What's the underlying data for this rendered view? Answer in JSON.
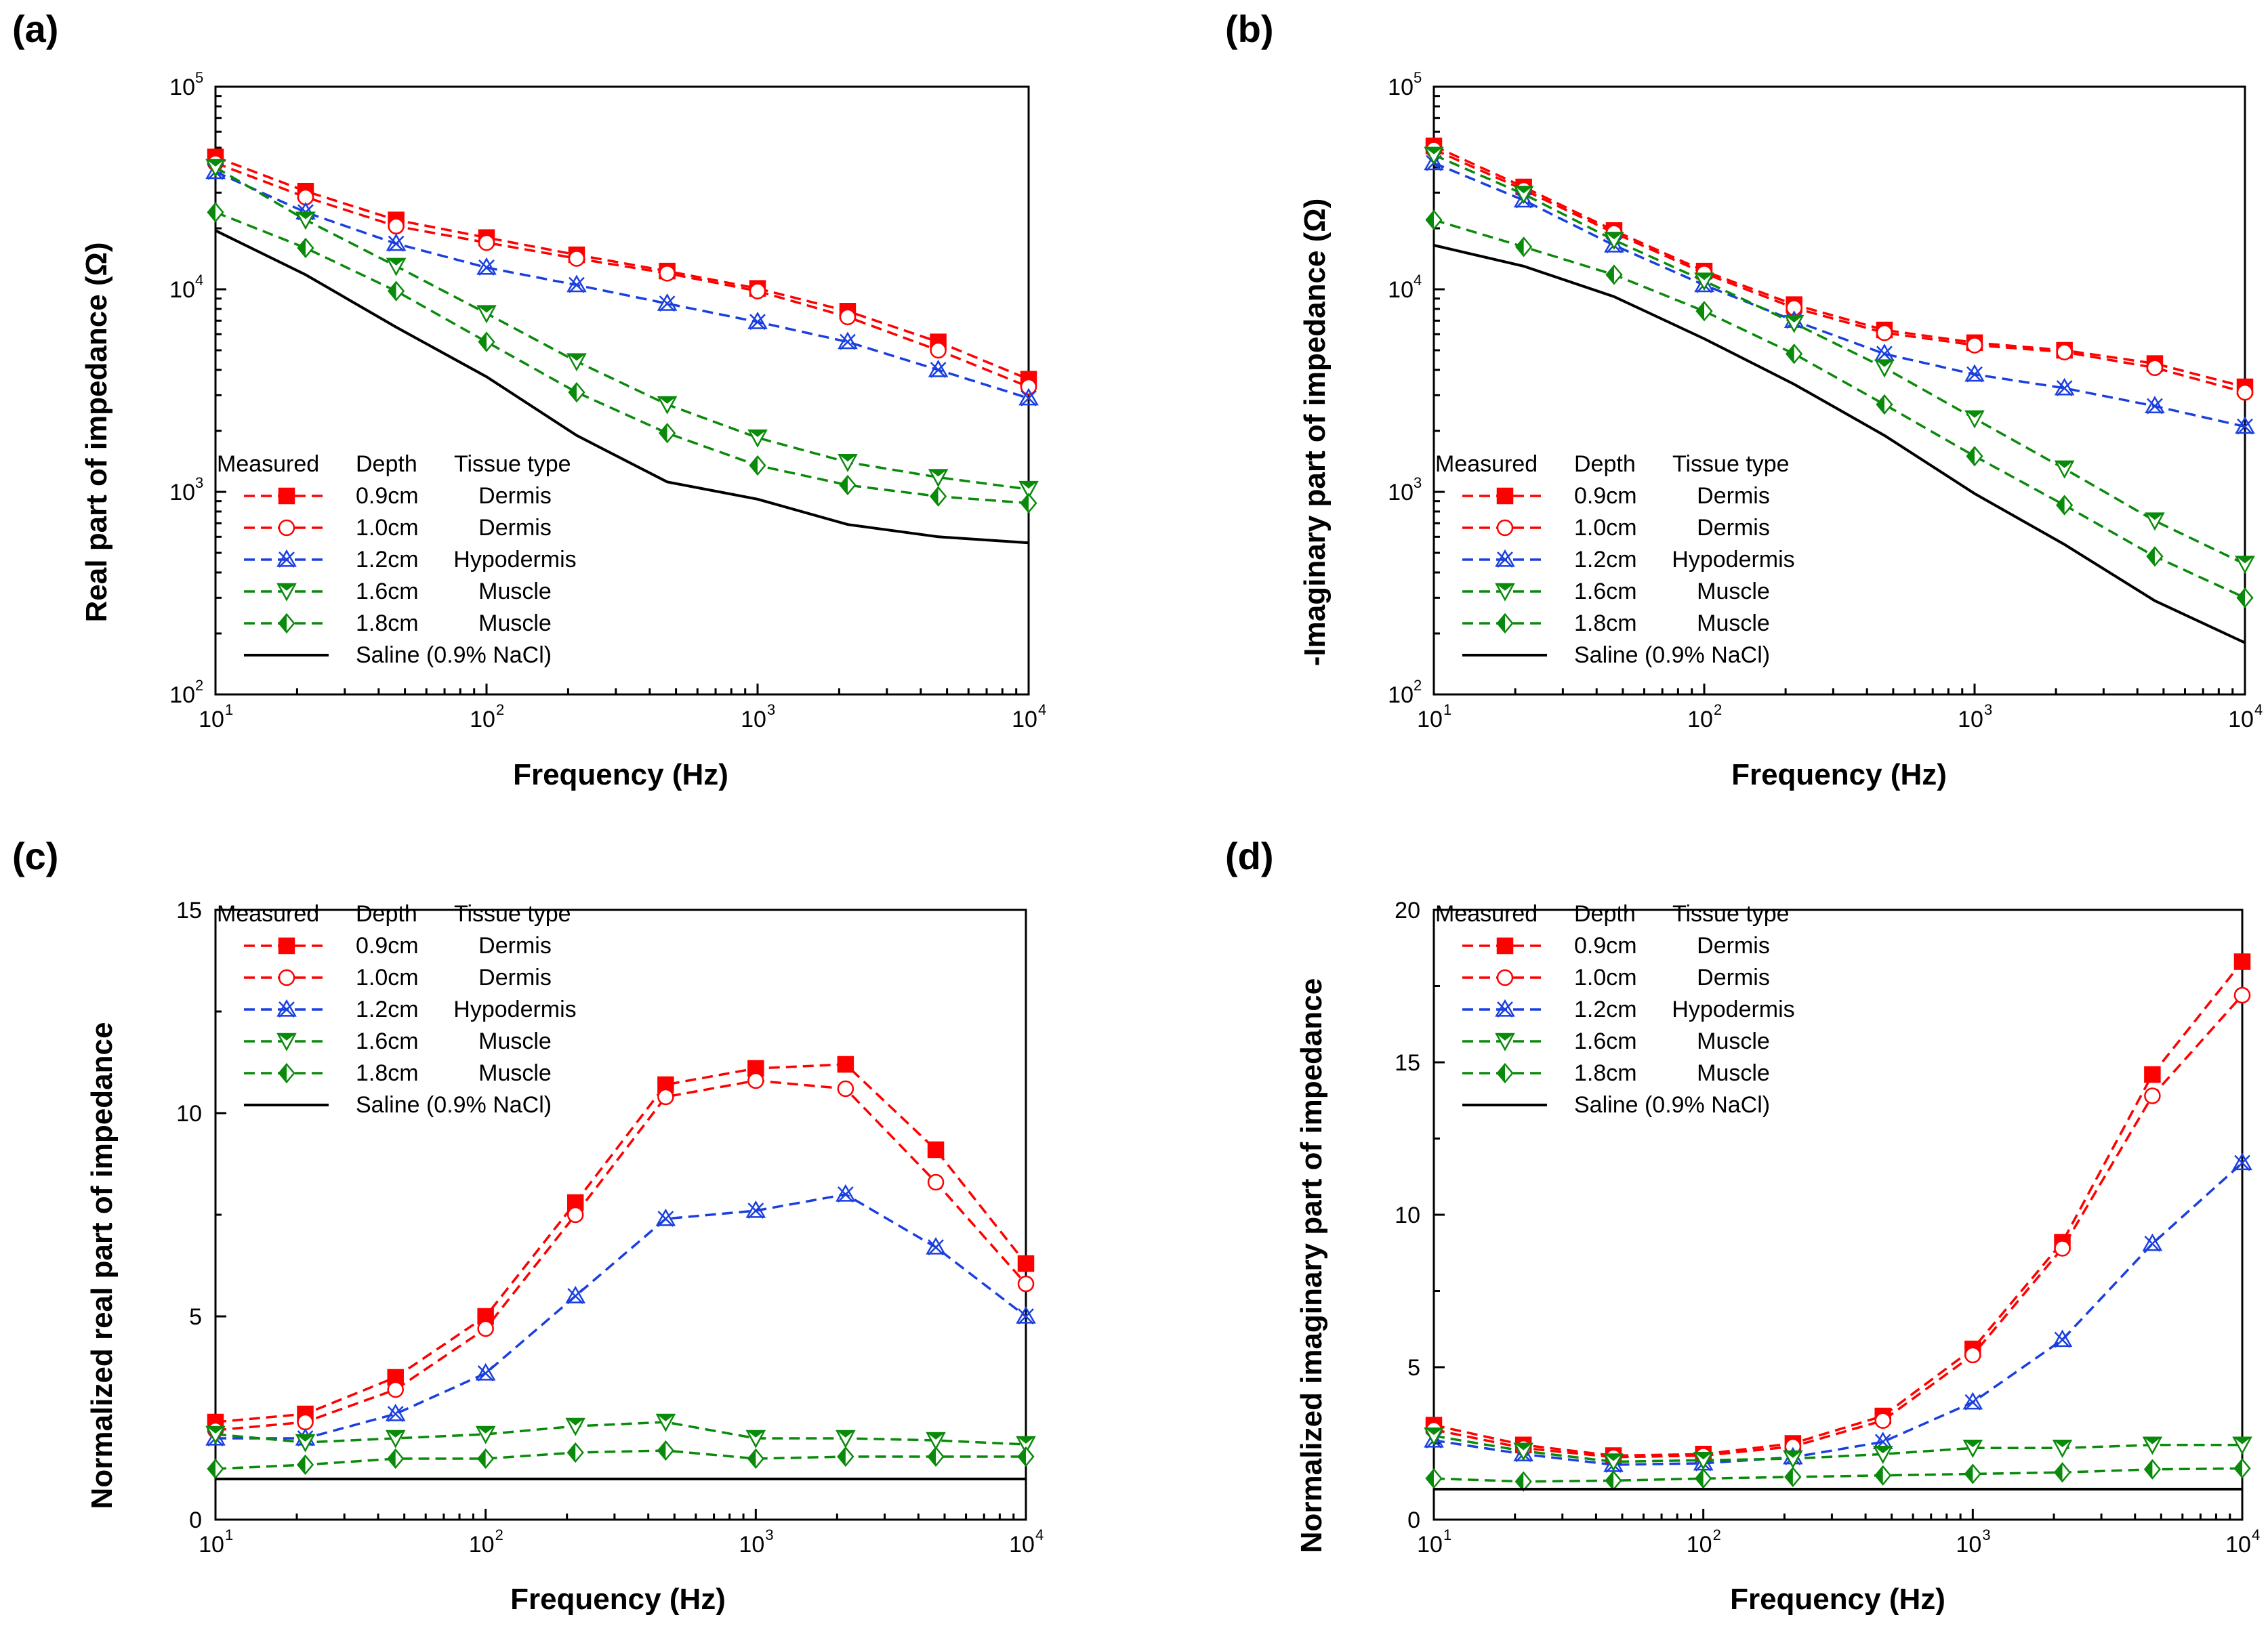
{
  "figure": {
    "panels": [
      "(a)",
      "(b)",
      "(c)",
      "(d)"
    ]
  },
  "legend": {
    "headers": [
      "Measured",
      "Depth",
      "Tissue type"
    ],
    "entries": [
      {
        "depth": "0.9cm",
        "tissue": "Dermis",
        "color": "#ff0000",
        "marker": "square-filled",
        "dash": true
      },
      {
        "depth": "1.0cm",
        "tissue": "Dermis",
        "color": "#ff0000",
        "marker": "circle-open",
        "dash": true
      },
      {
        "depth": "1.2cm",
        "tissue": "Hypodermis",
        "color": "#1a3fe0",
        "marker": "triangle-x",
        "dash": true
      },
      {
        "depth": "1.6cm",
        "tissue": "Muscle",
        "color": "#0a8a0a",
        "marker": "triangle-down",
        "dash": true
      },
      {
        "depth": "1.8cm",
        "tissue": "Muscle",
        "color": "#0a8a0a",
        "marker": "diamond-half",
        "dash": true
      },
      {
        "depth": "",
        "tissue": "Saline (0.9% NaCl)",
        "color": "#000000",
        "marker": "none",
        "dash": false
      }
    ]
  },
  "chart_data": [
    {
      "panel": "(a)",
      "type": "line",
      "xscale": "log",
      "yscale": "log",
      "xlabel": "Frequency (Hz)",
      "ylabel": "Real part of impedance (Ω)",
      "xlim": [
        10,
        10000
      ],
      "ylim": [
        100,
        100000
      ],
      "x": [
        10,
        21.5,
        46.4,
        100,
        215,
        464,
        1000,
        2150,
        4640,
        10000
      ],
      "series": [
        {
          "name": "0.9cm Dermis",
          "values": [
            45000,
            30500,
            22000,
            18000,
            14800,
            12300,
            10100,
            7800,
            5500,
            3600
          ]
        },
        {
          "name": "1.0cm Dermis",
          "values": [
            42000,
            28500,
            20500,
            17000,
            14200,
            12000,
            9800,
            7300,
            5000,
            3300
          ]
        },
        {
          "name": "1.2cm Hypodermis",
          "values": [
            38000,
            24000,
            16800,
            12800,
            10500,
            8500,
            6900,
            5500,
            4000,
            2900
          ]
        },
        {
          "name": "1.6cm Muscle",
          "values": [
            40000,
            22000,
            13000,
            7600,
            4400,
            2700,
            1850,
            1400,
            1180,
            1030
          ]
        },
        {
          "name": "1.8cm Muscle",
          "values": [
            24000,
            16000,
            9800,
            5500,
            3100,
            1950,
            1350,
            1080,
            950,
            880
          ]
        },
        {
          "name": "Saline (0.9% NaCl)",
          "values": [
            19500,
            11800,
            6500,
            3700,
            1900,
            1120,
            920,
            690,
            600,
            560
          ]
        }
      ]
    },
    {
      "panel": "(b)",
      "type": "line",
      "xscale": "log",
      "yscale": "log",
      "xlabel": "Frequency (Hz)",
      "ylabel": "-Imaginary part of impedance (Ω)",
      "xlim": [
        10,
        10000
      ],
      "ylim": [
        100,
        100000
      ],
      "x": [
        10,
        21.5,
        46.4,
        100,
        215,
        464,
        1000,
        2150,
        4640,
        10000
      ],
      "series": [
        {
          "name": "0.9cm Dermis",
          "values": [
            51000,
            32000,
            19500,
            12300,
            8400,
            6300,
            5450,
            5000,
            4300,
            3300
          ]
        },
        {
          "name": "1.0cm Dermis",
          "values": [
            49000,
            31000,
            19000,
            12000,
            8100,
            6100,
            5300,
            4900,
            4100,
            3100
          ]
        },
        {
          "name": "1.2cm Hypodermis",
          "values": [
            42000,
            27500,
            16500,
            10500,
            7000,
            4800,
            3800,
            3250,
            2650,
            2100
          ]
        },
        {
          "name": "1.6cm Muscle",
          "values": [
            46000,
            29500,
            17500,
            11000,
            6800,
            4100,
            2300,
            1300,
            720,
            440
          ]
        },
        {
          "name": "1.8cm Muscle",
          "values": [
            22000,
            16200,
            11800,
            7800,
            4800,
            2700,
            1500,
            860,
            480,
            300
          ]
        },
        {
          "name": "Saline (0.9% NaCl)",
          "values": [
            16500,
            13000,
            9200,
            5700,
            3400,
            1900,
            980,
            550,
            290,
            180
          ]
        }
      ]
    },
    {
      "panel": "(c)",
      "type": "line",
      "xscale": "log",
      "yscale": "linear",
      "xlabel": "Frequency (Hz)",
      "ylabel": "Normalized real part of impedance",
      "xlim": [
        10,
        10000
      ],
      "ylim": [
        0,
        15
      ],
      "yticks": [
        0,
        5,
        10,
        15
      ],
      "x": [
        10,
        21.5,
        46.4,
        100,
        215,
        464,
        1000,
        2150,
        4640,
        10000
      ],
      "series": [
        {
          "name": "0.9cm Dermis",
          "values": [
            2.4,
            2.6,
            3.5,
            5.0,
            7.8,
            10.7,
            11.1,
            11.2,
            9.1,
            6.3
          ]
        },
        {
          "name": "1.0cm Dermis",
          "values": [
            2.2,
            2.4,
            3.2,
            4.7,
            7.5,
            10.4,
            10.8,
            10.6,
            8.3,
            5.8
          ]
        },
        {
          "name": "1.2cm Hypodermis",
          "values": [
            2.0,
            2.0,
            2.6,
            3.6,
            5.5,
            7.4,
            7.6,
            8.0,
            6.7,
            5.0
          ]
        },
        {
          "name": "1.6cm Muscle",
          "values": [
            2.1,
            1.9,
            2.0,
            2.1,
            2.3,
            2.4,
            2.0,
            2.0,
            1.95,
            1.85
          ]
        },
        {
          "name": "1.8cm Muscle",
          "values": [
            1.25,
            1.35,
            1.5,
            1.5,
            1.65,
            1.7,
            1.5,
            1.55,
            1.55,
            1.55
          ]
        },
        {
          "name": "Saline (0.9% NaCl)",
          "values": [
            1,
            1,
            1,
            1,
            1,
            1,
            1,
            1,
            1,
            1
          ]
        }
      ]
    },
    {
      "panel": "(d)",
      "type": "line",
      "xscale": "log",
      "yscale": "linear",
      "xlabel": "Frequency (Hz)",
      "ylabel": "Normalized imaginary part of impedance",
      "xlim": [
        10,
        10000
      ],
      "ylim": [
        0,
        20
      ],
      "yticks": [
        0,
        5,
        10,
        15,
        20
      ],
      "x": [
        10,
        21.5,
        46.4,
        100,
        215,
        464,
        1000,
        2150,
        4640,
        10000
      ],
      "series": [
        {
          "name": "0.9cm Dermis",
          "values": [
            3.1,
            2.45,
            2.1,
            2.15,
            2.5,
            3.4,
            5.6,
            9.1,
            14.6,
            18.3
          ]
        },
        {
          "name": "1.0cm Dermis",
          "values": [
            2.95,
            2.35,
            2.05,
            2.1,
            2.4,
            3.25,
            5.4,
            8.9,
            13.9,
            17.2
          ]
        },
        {
          "name": "1.2cm Hypodermis",
          "values": [
            2.6,
            2.15,
            1.8,
            1.85,
            2.05,
            2.55,
            3.85,
            5.9,
            9.05,
            11.7
          ]
        },
        {
          "name": "1.6cm Muscle",
          "values": [
            2.75,
            2.25,
            1.9,
            1.95,
            2.0,
            2.15,
            2.35,
            2.35,
            2.45,
            2.45
          ]
        },
        {
          "name": "1.8cm Muscle",
          "values": [
            1.35,
            1.25,
            1.28,
            1.35,
            1.4,
            1.45,
            1.5,
            1.55,
            1.65,
            1.68
          ]
        },
        {
          "name": "Saline (0.9% NaCl)",
          "values": [
            1,
            1,
            1,
            1,
            1,
            1,
            1,
            1,
            1,
            1
          ]
        }
      ]
    }
  ]
}
